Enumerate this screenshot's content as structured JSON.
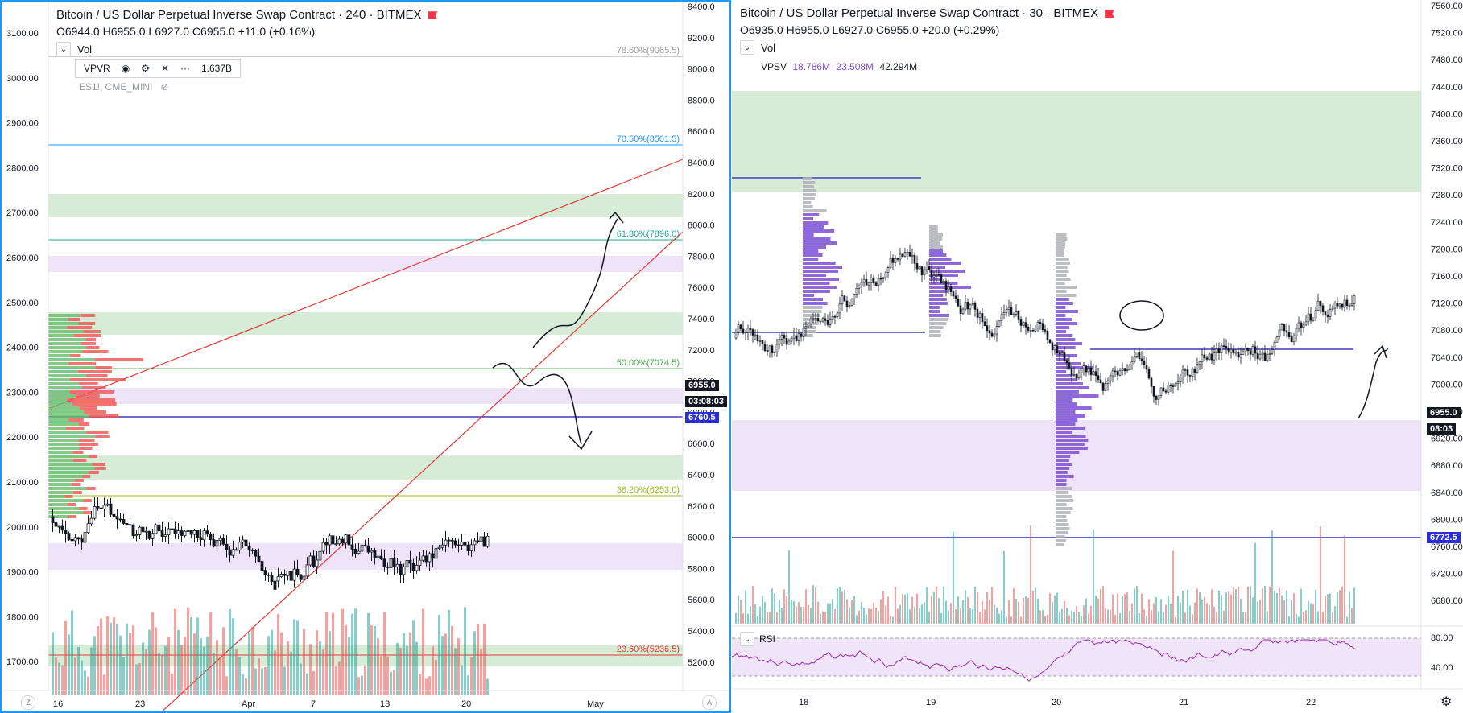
{
  "left": {
    "title": "Bitcoin / US Dollar Perpetual Inverse Swap Contract · 240 · BITMEX",
    "ohlc": "O6944.0 H6955.0 L6927.0 C6955.0 +11.0 (+0.16%)",
    "vol_label": "Vol",
    "toolbar": {
      "label": "VPVR",
      "value": "1.637B",
      "eye_icon": "eye-icon",
      "settings_icon": "gear-icon",
      "close_icon": "close-icon",
      "more_icon": "more-icon"
    },
    "compare_symbol": "ES1!, CME_MINI",
    "left_axis_labels": [
      "3100.00",
      "3000.00",
      "2900.00",
      "2800.00",
      "2700.00",
      "2600.00",
      "2500.00",
      "2400.00",
      "2300.00",
      "2200.00",
      "2100.00",
      "2000.00",
      "1900.00",
      "1800.00",
      "1700.00"
    ],
    "right_axis_labels": [
      "9400.0",
      "9200.0",
      "9000.0",
      "8800.0",
      "8600.0",
      "8400.0",
      "8200.0",
      "8000.0",
      "7800.0",
      "7600.0",
      "7400.0",
      "7200.0",
      "7000.0",
      "6800.0",
      "6600.0",
      "6400.0",
      "6200.0",
      "6000.0",
      "5800.0",
      "5600.0",
      "5400.0",
      "5200.0"
    ],
    "fib_labels": [
      "78.60%(9065.5)",
      "70.50%(8501.5)",
      "61.80%(7896.0)",
      "50.00%(7074.5)",
      "38.20%(6253.0)",
      "23.60%(5236.5)"
    ],
    "price_tags": {
      "last": "6955.0",
      "countdown": "03:08:03",
      "line": "6760.5"
    },
    "x_labels": [
      "16",
      "23",
      "Apr",
      "7",
      "13",
      "20",
      "May"
    ],
    "axis_btn_left": "Z",
    "axis_btn_right": "A",
    "colors": {
      "border": "#2196f3",
      "up": "#26a69a",
      "down": "#ef5350",
      "green_zone": "#c8e6c9",
      "purple_zone": "#e9d9f7",
      "trend": "#e53935",
      "hline": "#3f3fb5"
    }
  },
  "right": {
    "title": "Bitcoin / US Dollar Perpetual Inverse Swap Contract · 30 · BITMEX",
    "ohlc": "O6935.0 H6955.0 L6927.0 C6955.0 +20.0 (+0.29%)",
    "vol_label": "Vol",
    "vpsv_label": "VPSV",
    "vpsv_values": [
      "18.786M",
      "23.508M",
      "42.294M"
    ],
    "right_axis_labels": [
      "7560.00",
      "7520.00",
      "7480.00",
      "7440.00",
      "7400.00",
      "7360.00",
      "7320.00",
      "7280.00",
      "7240.00",
      "7200.00",
      "7160.00",
      "7120.00",
      "7080.00",
      "7040.00",
      "7000.00",
      "6960.00",
      "6920.00",
      "6880.00",
      "6840.00",
      "6800.00",
      "6760.00",
      "6720.00",
      "6680.00"
    ],
    "price_tags": {
      "last": "6955.0",
      "countdown": "08:03",
      "line": "6772.5"
    },
    "rsi_label": "RSI",
    "rsi_axis": [
      "80.00",
      "40.00"
    ],
    "x_labels": [
      "18",
      "19",
      "20",
      "21",
      "22"
    ],
    "gear_icon": "gear-icon"
  }
}
